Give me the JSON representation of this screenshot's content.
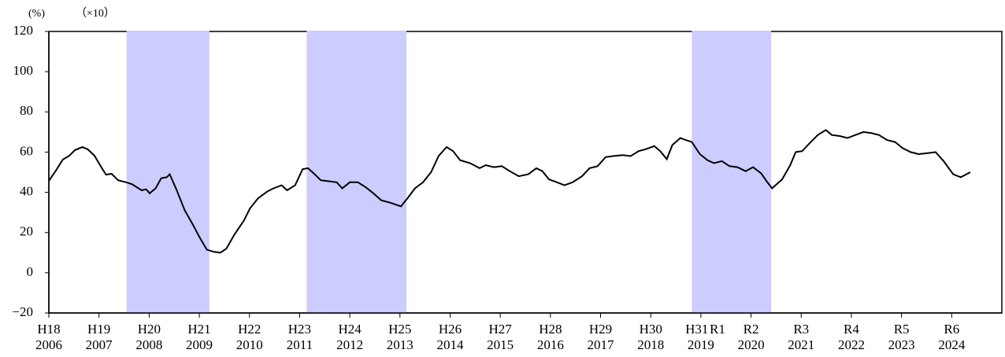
{
  "chart_data": {
    "type": "line",
    "y_unit_label": "(%)",
    "y_scale_label": "（×10）",
    "xlim": [
      2006,
      2025
    ],
    "ylim": [
      -20,
      120
    ],
    "yticks": [
      {
        "value": -20,
        "label": "−20"
      },
      0,
      20,
      40,
      60,
      80,
      100,
      120
    ],
    "xticks": [
      2006,
      2007,
      2008,
      2009,
      2010,
      2011,
      2012,
      2013,
      2014,
      2015,
      2016,
      2017,
      2018,
      2019,
      2020,
      2021,
      2022,
      2023,
      2024
    ],
    "era_labels": [
      {
        "value": 2006,
        "label": "H18"
      },
      {
        "value": 2007,
        "label": "H19"
      },
      {
        "value": 2008,
        "label": "H20"
      },
      {
        "value": 2009,
        "label": "H21"
      },
      {
        "value": 2010,
        "label": "H22"
      },
      {
        "value": 2011,
        "label": "H23"
      },
      {
        "value": 2012,
        "label": "H24"
      },
      {
        "value": 2013,
        "label": "H25"
      },
      {
        "value": 2014,
        "label": "H26"
      },
      {
        "value": 2015,
        "label": "H27"
      },
      {
        "value": 2016,
        "label": "H28"
      },
      {
        "value": 2017,
        "label": "H29"
      },
      {
        "value": 2018,
        "label": "H30"
      },
      {
        "value": 2018.92,
        "label": "H31"
      },
      {
        "value": 2019.33,
        "label": "R1"
      },
      {
        "value": 2020,
        "label": "R2"
      },
      {
        "value": 2021,
        "label": "R3"
      },
      {
        "value": 2022,
        "label": "R4"
      },
      {
        "value": 2023,
        "label": "R5"
      },
      {
        "value": 2024,
        "label": "R6"
      }
    ],
    "shaded_periods": [
      [
        2007.55,
        2009.2
      ],
      [
        2011.14,
        2013.13
      ],
      [
        2018.82,
        2020.4
      ]
    ],
    "shade_color": "#ccccff",
    "series": [
      {
        "color": "#000000",
        "x": [
          2006.0,
          2006.13,
          2006.28,
          2006.41,
          2006.52,
          2006.67,
          2006.78,
          2006.91,
          2007.02,
          2007.14,
          2007.25,
          2007.38,
          2007.54,
          2007.66,
          2007.85,
          2007.94,
          2008.01,
          2008.13,
          2008.24,
          2008.35,
          2008.41,
          2008.55,
          2008.71,
          2008.87,
          2009.02,
          2009.15,
          2009.29,
          2009.42,
          2009.54,
          2009.7,
          2009.89,
          2010.01,
          2010.17,
          2010.36,
          2010.48,
          2010.64,
          2010.75,
          2010.91,
          2011.06,
          2011.17,
          2011.3,
          2011.42,
          2011.58,
          2011.74,
          2011.85,
          2012.0,
          2012.16,
          2012.32,
          2012.47,
          2012.63,
          2012.79,
          2013.02,
          2013.15,
          2013.3,
          2013.46,
          2013.62,
          2013.77,
          2013.93,
          2014.06,
          2014.2,
          2014.4,
          2014.59,
          2014.71,
          2014.87,
          2015.03,
          2015.19,
          2015.37,
          2015.56,
          2015.72,
          2015.84,
          2015.97,
          2016.13,
          2016.28,
          2016.44,
          2016.63,
          2016.78,
          2016.94,
          2017.1,
          2017.25,
          2017.44,
          2017.6,
          2017.76,
          2017.91,
          2018.07,
          2018.19,
          2018.32,
          2018.43,
          2018.59,
          2018.7,
          2018.82,
          2018.98,
          2019.13,
          2019.26,
          2019.42,
          2019.57,
          2019.73,
          2019.89,
          2020.04,
          2020.2,
          2020.31,
          2020.42,
          2020.62,
          2020.78,
          2020.89,
          2021.02,
          2021.17,
          2021.33,
          2021.49,
          2021.61,
          2021.77,
          2021.92,
          2022.08,
          2022.24,
          2022.39,
          2022.55,
          2022.71,
          2022.87,
          2023.02,
          2023.18,
          2023.34,
          2023.52,
          2023.68,
          2023.84,
          2024.03,
          2024.18,
          2024.37
        ],
        "values": [
          45.7,
          50.4,
          56.3,
          58.2,
          61.0,
          62.5,
          61.3,
          58.2,
          53.5,
          48.8,
          49.2,
          46.0,
          45.0,
          44.0,
          41.0,
          41.5,
          39.5,
          42.0,
          47.0,
          47.5,
          49.0,
          41.0,
          31.0,
          24.0,
          17.0,
          11.5,
          10.4,
          10.0,
          12.0,
          19.0,
          26.0,
          32.0,
          37.0,
          40.5,
          42.0,
          43.5,
          41.0,
          43.5,
          51.5,
          52.0,
          49.0,
          46.0,
          45.5,
          45.0,
          42.0,
          45.0,
          45.0,
          42.5,
          39.5,
          36.0,
          35.0,
          33.0,
          37.0,
          42.0,
          45.0,
          50.0,
          58.0,
          62.5,
          60.5,
          56.0,
          54.5,
          52.0,
          53.5,
          52.5,
          53.0,
          50.5,
          48.0,
          49.0,
          52.0,
          50.5,
          46.5,
          45.0,
          43.5,
          45.0,
          48.0,
          52.0,
          53.0,
          57.5,
          58.0,
          58.5,
          58.0,
          60.5,
          61.5,
          63.0,
          60.5,
          56.5,
          63.5,
          67.0,
          66.0,
          65.0,
          59.0,
          56.0,
          54.5,
          55.5,
          53.0,
          52.5,
          50.5,
          52.5,
          49.5,
          45.5,
          42.0,
          46.5,
          53.5,
          60.0,
          60.5,
          64.5,
          68.5,
          71.0,
          68.5,
          68.0,
          67.0,
          68.5,
          70.0,
          69.5,
          68.5,
          66.0,
          65.0,
          62.0,
          60.0,
          59.0,
          59.5,
          60.0,
          55.5,
          49.0,
          47.5,
          50.0
        ]
      }
    ]
  }
}
